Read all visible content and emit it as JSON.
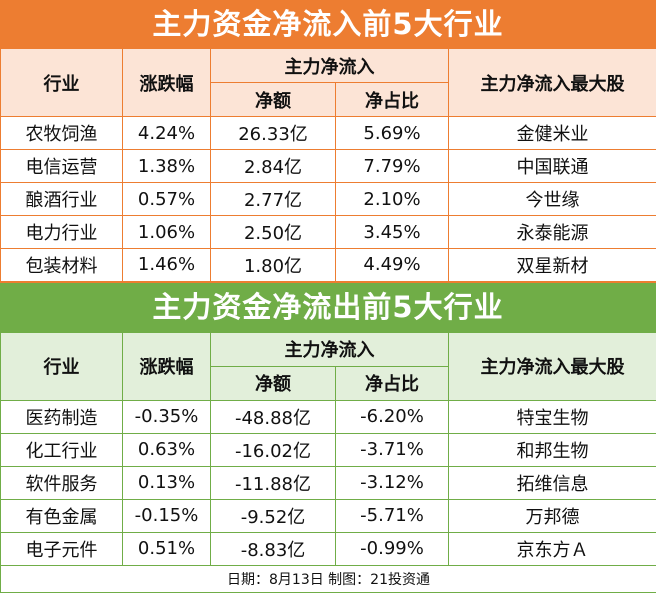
{
  "headers": {
    "industry": "行业",
    "change": "涨跌幅",
    "net_inflow": "主力净流入",
    "amount": "净额",
    "ratio": "净占比",
    "top_stock": "主力净流入最大股"
  },
  "inflow": {
    "title": "主力资金净流入前5大行业",
    "rows": [
      {
        "industry": "农牧饲渔",
        "change": "4.24%",
        "amount": "26.33亿",
        "ratio": "5.69%",
        "stock": "金健米业"
      },
      {
        "industry": "电信运营",
        "change": "1.38%",
        "amount": "2.84亿",
        "ratio": "7.79%",
        "stock": "中国联通"
      },
      {
        "industry": "酿酒行业",
        "change": "0.57%",
        "amount": "2.77亿",
        "ratio": "2.10%",
        "stock": "今世缘"
      },
      {
        "industry": "电力行业",
        "change": "1.06%",
        "amount": "2.50亿",
        "ratio": "3.45%",
        "stock": "永泰能源"
      },
      {
        "industry": "包装材料",
        "change": "1.46%",
        "amount": "1.80亿",
        "ratio": "4.49%",
        "stock": "双星新材"
      }
    ]
  },
  "outflow": {
    "title": "主力资金净流出前5大行业",
    "rows": [
      {
        "industry": "医药制造",
        "change": "-0.35%",
        "amount": "-48.88亿",
        "ratio": "-6.20%",
        "stock": "特宝生物"
      },
      {
        "industry": "化工行业",
        "change": "0.63%",
        "amount": "-16.02亿",
        "ratio": "-3.71%",
        "stock": "和邦生物"
      },
      {
        "industry": "软件服务",
        "change": "0.13%",
        "amount": "-11.88亿",
        "ratio": "-3.12%",
        "stock": "拓维信息"
      },
      {
        "industry": "有色金属",
        "change": "-0.15%",
        "amount": "-9.52亿",
        "ratio": "-5.71%",
        "stock": "万邦德"
      },
      {
        "industry": "电子元件",
        "change": "0.51%",
        "amount": "-8.83亿",
        "ratio": "-0.99%",
        "stock": "京东方Ａ"
      }
    ]
  },
  "footer": "日期：8月13日 制图：21投资通"
}
